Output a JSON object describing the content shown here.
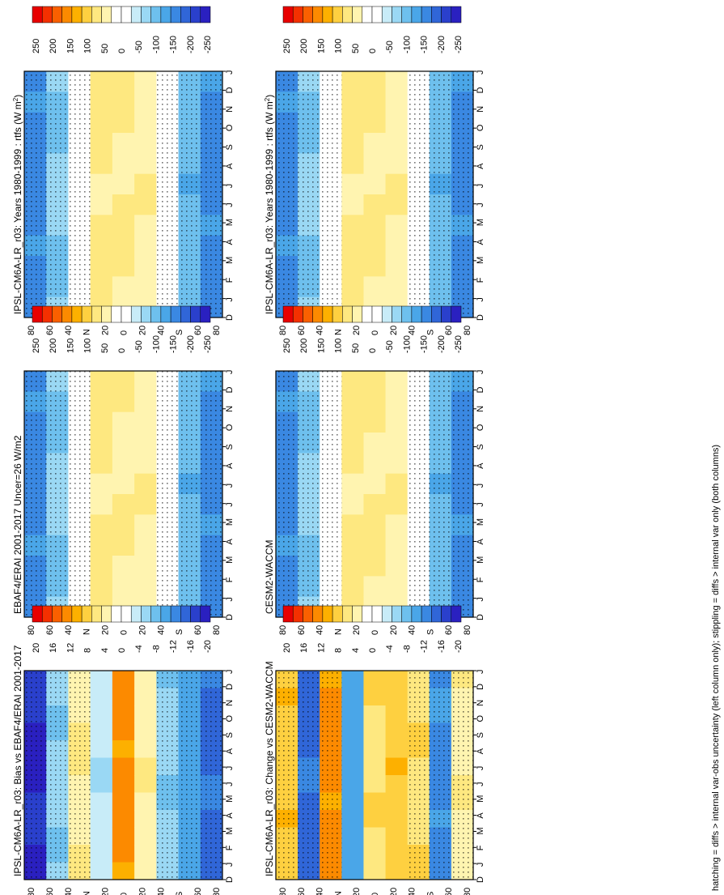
{
  "figure": {
    "caption": "hatching = diffs > internal var-obs uncertainty (left column only); stippling = diffs > internal var only (both columns)",
    "month_labels": [
      "D",
      "J",
      "F",
      "M",
      "A",
      "M",
      "J",
      "J",
      "A",
      "S",
      "O",
      "N",
      "D",
      "J"
    ],
    "lat_labels": [
      "80",
      "60",
      "40",
      "N",
      "20",
      "0",
      "20",
      "40",
      "S",
      "60",
      "80"
    ],
    "colors": {
      "scale": [
        "#e80000",
        "#f43000",
        "#fa6000",
        "#fc8a00",
        "#fdb000",
        "#fed040",
        "#fee880",
        "#fff4b0",
        "#ffffff",
        "#ffffff",
        "#c8ecf8",
        "#9ad8f4",
        "#6ec0ee",
        "#4aa6e8",
        "#3a88e2",
        "#3066d8",
        "#2a40cc",
        "#2a20c0"
      ],
      "stipple": "#000000",
      "frame": "#000000"
    }
  },
  "panels": [
    {
      "title": "IPSL-CM6A-LR_r03: Years 1980-1999 : rtfs (W m",
      "title_sup": "2",
      "title_tail": ")",
      "stippled": true
    },
    {
      "title": "EBAF4/ERAI 2001-2017 Uncer=26 W/m2",
      "title_sup": "",
      "title_tail": "",
      "stippled": true
    },
    {
      "title": "IPSL-CM6A-LR_r03: Bias vs EBAF4/ERAI 2001-2017",
      "title_sup": "",
      "title_tail": "",
      "stippled": true
    },
    {
      "title": "IPSL-CM6A-LR_r03: Years 1980-1999 : rtfs (W m",
      "title_sup": "2",
      "title_tail": ")",
      "stippled": true
    },
    {
      "title": "CESM2-WACCM",
      "title_sup": "",
      "title_tail": "",
      "stippled": true
    },
    {
      "title": "IPSL-CM6A-LR_r03: Change vs CESM2-WACCM",
      "title_sup": "",
      "title_tail": "",
      "stippled": true
    }
  ],
  "colorbars": [
    {
      "labels": [
        "250",
        "200",
        "150",
        "100",
        "50",
        "0",
        "-50",
        "-100",
        "-150",
        "-200",
        "-250"
      ]
    },
    {
      "labels": [
        "250",
        "200",
        "150",
        "100",
        "50",
        "0",
        "-50",
        "-100",
        "-150",
        "-200",
        "-250"
      ]
    },
    {
      "labels": [
        "20",
        "16",
        "12",
        "8",
        "4",
        "0",
        "-4",
        "-8",
        "-12",
        "-16",
        "-20"
      ]
    },
    {
      "labels": [
        "250",
        "200",
        "150",
        "100",
        "50",
        "0",
        "-50",
        "-100",
        "-150",
        "-200",
        "-250"
      ]
    },
    {
      "labels": [
        "250",
        "200",
        "150",
        "100",
        "50",
        "0",
        "-50",
        "-100",
        "-150",
        "-200",
        "-250"
      ]
    },
    {
      "labels": [
        "20",
        "16",
        "12",
        "8",
        "4",
        "0",
        "-4",
        "-8",
        "-12",
        "-16",
        "-20"
      ]
    }
  ],
  "chart_data": [
    {
      "type": "heatmap",
      "title": "IPSL-CM6A-LR_r03: Years 1980-1999 : rtfs (W m2)",
      "x": "month (D J F M A M J J A S O N D J)",
      "y": "latitude (80N to 80S)",
      "bands": [
        {
          "lat": 80,
          "value": -150
        },
        {
          "lat": 60,
          "value": -80
        },
        {
          "lat": 40,
          "value": 0
        },
        {
          "lat": 20,
          "value": 60
        },
        {
          "lat": 0,
          "value": 60
        },
        {
          "lat": -20,
          "value": 50
        },
        {
          "lat": -40,
          "value": 0
        },
        {
          "lat": -60,
          "value": -100
        },
        {
          "lat": -80,
          "value": -150
        }
      ],
      "colorbar": {
        "min": -250,
        "max": 250,
        "step": 50
      }
    },
    {
      "type": "heatmap",
      "title": "EBAF4/ERAI 2001-2017 Uncer=26 W/m2",
      "x": "month (D J F M A M J J A S O N D J)",
      "y": "latitude (80N to 80S)",
      "bands": [
        {
          "lat": 80,
          "value": -150
        },
        {
          "lat": 60,
          "value": -80
        },
        {
          "lat": 40,
          "value": 0
        },
        {
          "lat": 20,
          "value": 60
        },
        {
          "lat": 0,
          "value": 50
        },
        {
          "lat": -20,
          "value": 50
        },
        {
          "lat": -40,
          "value": 0
        },
        {
          "lat": -60,
          "value": -100
        },
        {
          "lat": -80,
          "value": -150
        }
      ],
      "colorbar": {
        "min": -250,
        "max": 250,
        "step": 50
      }
    },
    {
      "type": "heatmap",
      "title": "IPSL-CM6A-LR_r03: Bias vs EBAF4/ERAI 2001-2017",
      "x": "month (D J F M A M J J A S O N D J)",
      "y": "latitude (80N to 80S)",
      "bands": [
        {
          "lat": 80,
          "value": -18
        },
        {
          "lat": 60,
          "value": -6
        },
        {
          "lat": 40,
          "value": 4
        },
        {
          "lat": 20,
          "value": -4
        },
        {
          "lat": 0,
          "value": 12
        },
        {
          "lat": -20,
          "value": 4
        },
        {
          "lat": -40,
          "value": -6
        },
        {
          "lat": -60,
          "value": -10
        },
        {
          "lat": -80,
          "value": -14
        }
      ],
      "colorbar": {
        "min": -20,
        "max": 20,
        "step": 4
      }
    },
    {
      "type": "heatmap",
      "title": "IPSL-CM6A-LR_r03: Years 1980-1999 : rtfs (W m2)",
      "x": "month (D J F M A M J J A S O N D J)",
      "y": "latitude (80N to 80S)",
      "bands": [
        {
          "lat": 80,
          "value": -150
        },
        {
          "lat": 60,
          "value": -80
        },
        {
          "lat": 40,
          "value": 0
        },
        {
          "lat": 20,
          "value": 60
        },
        {
          "lat": 0,
          "value": 60
        },
        {
          "lat": -20,
          "value": 50
        },
        {
          "lat": -40,
          "value": 0
        },
        {
          "lat": -60,
          "value": -100
        },
        {
          "lat": -80,
          "value": -150
        }
      ],
      "colorbar": {
        "min": -250,
        "max": 250,
        "step": 50
      }
    },
    {
      "type": "heatmap",
      "title": "CESM2-WACCM",
      "x": "month (D J F M A M J J A S O N D J)",
      "y": "latitude (80N to 80S)",
      "bands": [
        {
          "lat": 80,
          "value": -150
        },
        {
          "lat": 60,
          "value": -80
        },
        {
          "lat": 40,
          "value": 0
        },
        {
          "lat": 20,
          "value": 60
        },
        {
          "lat": 0,
          "value": 60
        },
        {
          "lat": -20,
          "value": 50
        },
        {
          "lat": -40,
          "value": 0
        },
        {
          "lat": -60,
          "value": -100
        },
        {
          "lat": -80,
          "value": -150
        }
      ],
      "colorbar": {
        "min": -250,
        "max": 250,
        "step": 50
      }
    },
    {
      "type": "heatmap",
      "title": "IPSL-CM6A-LR_r03: Change vs CESM2-WACCM",
      "x": "month (D J F M A M J J A S O N D J)",
      "y": "latitude (80N to 80S)",
      "bands": [
        {
          "lat": 80,
          "value": 8
        },
        {
          "lat": 60,
          "value": -14
        },
        {
          "lat": 40,
          "value": 12
        },
        {
          "lat": 20,
          "value": -10
        },
        {
          "lat": 0,
          "value": 6
        },
        {
          "lat": -20,
          "value": 8
        },
        {
          "lat": -40,
          "value": 6
        },
        {
          "lat": -60,
          "value": -12
        },
        {
          "lat": -80,
          "value": 4
        }
      ],
      "colorbar": {
        "min": -20,
        "max": 20,
        "step": 4
      }
    }
  ]
}
